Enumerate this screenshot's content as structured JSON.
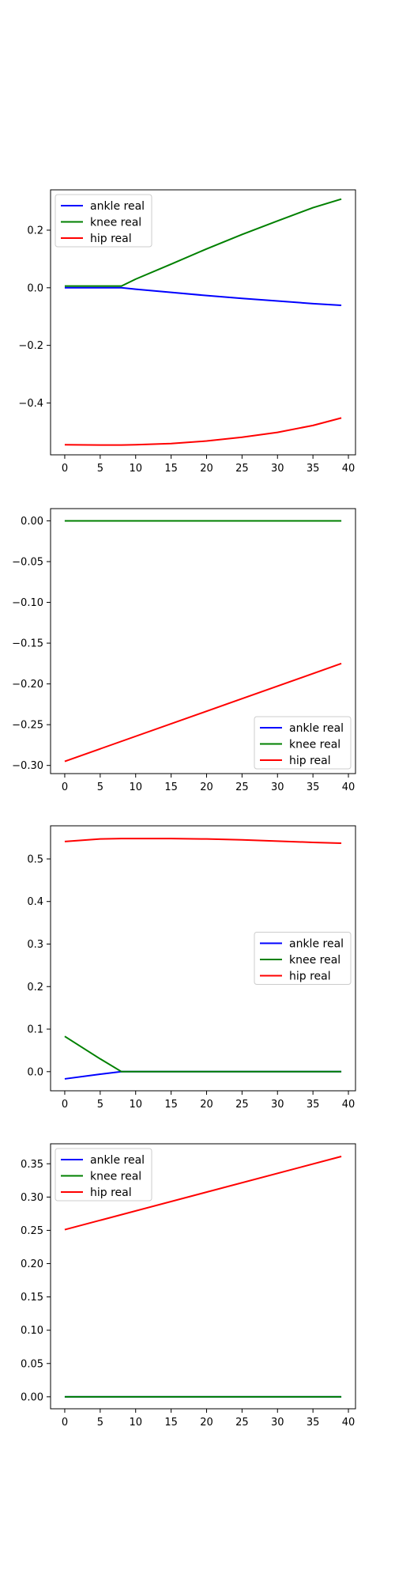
{
  "chart_data": [
    {
      "type": "line",
      "x": [
        0,
        5,
        8,
        10,
        15,
        20,
        25,
        30,
        35,
        39
      ],
      "xlim": [
        -2,
        41
      ],
      "ylim": [
        -0.58,
        0.34
      ],
      "xticks": [
        0,
        5,
        10,
        15,
        20,
        25,
        30,
        35,
        40
      ],
      "yticks": [
        -0.4,
        -0.2,
        0.0,
        0.2
      ],
      "ytick_labels": [
        "−0.4",
        "−0.2",
        "0.0",
        "0.2"
      ],
      "legend": "upper-left",
      "grid": false,
      "series": [
        {
          "name": "ankle real",
          "color": "#0000ff",
          "values": [
            0.0,
            0.0,
            0.0,
            -0.005,
            -0.016,
            -0.027,
            -0.037,
            -0.046,
            -0.055,
            -0.061
          ]
        },
        {
          "name": "knee real",
          "color": "#008000",
          "values": [
            0.006,
            0.006,
            0.006,
            0.03,
            0.082,
            0.135,
            0.185,
            0.232,
            0.278,
            0.308
          ]
        },
        {
          "name": "hip real",
          "color": "#ff0000",
          "values": [
            -0.545,
            -0.546,
            -0.546,
            -0.545,
            -0.541,
            -0.532,
            -0.519,
            -0.502,
            -0.478,
            -0.452
          ]
        }
      ]
    },
    {
      "type": "line",
      "x": [
        0,
        39
      ],
      "xlim": [
        -2,
        41
      ],
      "ylim": [
        -0.31,
        0.015
      ],
      "xticks": [
        0,
        5,
        10,
        15,
        20,
        25,
        30,
        35,
        40
      ],
      "yticks": [
        -0.3,
        -0.25,
        -0.2,
        -0.15,
        -0.1,
        -0.05,
        0.0
      ],
      "ytick_labels": [
        "−0.30",
        "−0.25",
        "−0.20",
        "−0.15",
        "−0.10",
        "−0.05",
        "0.00"
      ],
      "legend": "lower-right",
      "grid": false,
      "series": [
        {
          "name": "ankle real",
          "color": "#0000ff",
          "values": [
            0.0,
            0.0
          ]
        },
        {
          "name": "knee real",
          "color": "#008000",
          "values": [
            0.0,
            0.0
          ]
        },
        {
          "name": "hip real",
          "color": "#ff0000",
          "values": [
            -0.295,
            -0.175
          ]
        }
      ]
    },
    {
      "type": "line",
      "x": [
        0,
        5,
        8,
        10,
        15,
        20,
        25,
        30,
        35,
        39
      ],
      "xlim": [
        -2,
        41
      ],
      "ylim": [
        -0.045,
        0.578
      ],
      "xticks": [
        0,
        5,
        10,
        15,
        20,
        25,
        30,
        35,
        40
      ],
      "yticks": [
        0.0,
        0.1,
        0.2,
        0.3,
        0.4,
        0.5
      ],
      "ytick_labels": [
        "0.0",
        "0.1",
        "0.2",
        "0.3",
        "0.4",
        "0.5"
      ],
      "legend": "center-right",
      "grid": false,
      "series": [
        {
          "name": "ankle real",
          "color": "#0000ff",
          "values": [
            -0.017,
            -0.006,
            0.0,
            0.0,
            0.0,
            0.0,
            0.0,
            0.0,
            0.0,
            0.0
          ]
        },
        {
          "name": "knee real",
          "color": "#008000",
          "values": [
            0.083,
            0.03,
            0.0,
            0.0,
            0.0,
            0.0,
            0.0,
            0.0,
            0.0,
            0.0
          ]
        },
        {
          "name": "hip real",
          "color": "#ff0000",
          "values": [
            0.541,
            0.547,
            0.548,
            0.548,
            0.548,
            0.547,
            0.545,
            0.542,
            0.539,
            0.537
          ]
        }
      ]
    },
    {
      "type": "line",
      "x": [
        0,
        39
      ],
      "xlim": [
        -2,
        41
      ],
      "ylim": [
        -0.018,
        0.38
      ],
      "xticks": [
        0,
        5,
        10,
        15,
        20,
        25,
        30,
        35,
        40
      ],
      "yticks": [
        0.0,
        0.05,
        0.1,
        0.15,
        0.2,
        0.25,
        0.3,
        0.35
      ],
      "ytick_labels": [
        "0.00",
        "0.05",
        "0.10",
        "0.15",
        "0.20",
        "0.25",
        "0.30",
        "0.35"
      ],
      "legend": "upper-left",
      "grid": false,
      "series": [
        {
          "name": "ankle real",
          "color": "#0000ff",
          "values": [
            0.0,
            0.0
          ]
        },
        {
          "name": "knee real",
          "color": "#008000",
          "values": [
            0.0,
            0.0
          ]
        },
        {
          "name": "hip real",
          "color": "#ff0000",
          "values": [
            0.251,
            0.361
          ]
        }
      ]
    }
  ]
}
